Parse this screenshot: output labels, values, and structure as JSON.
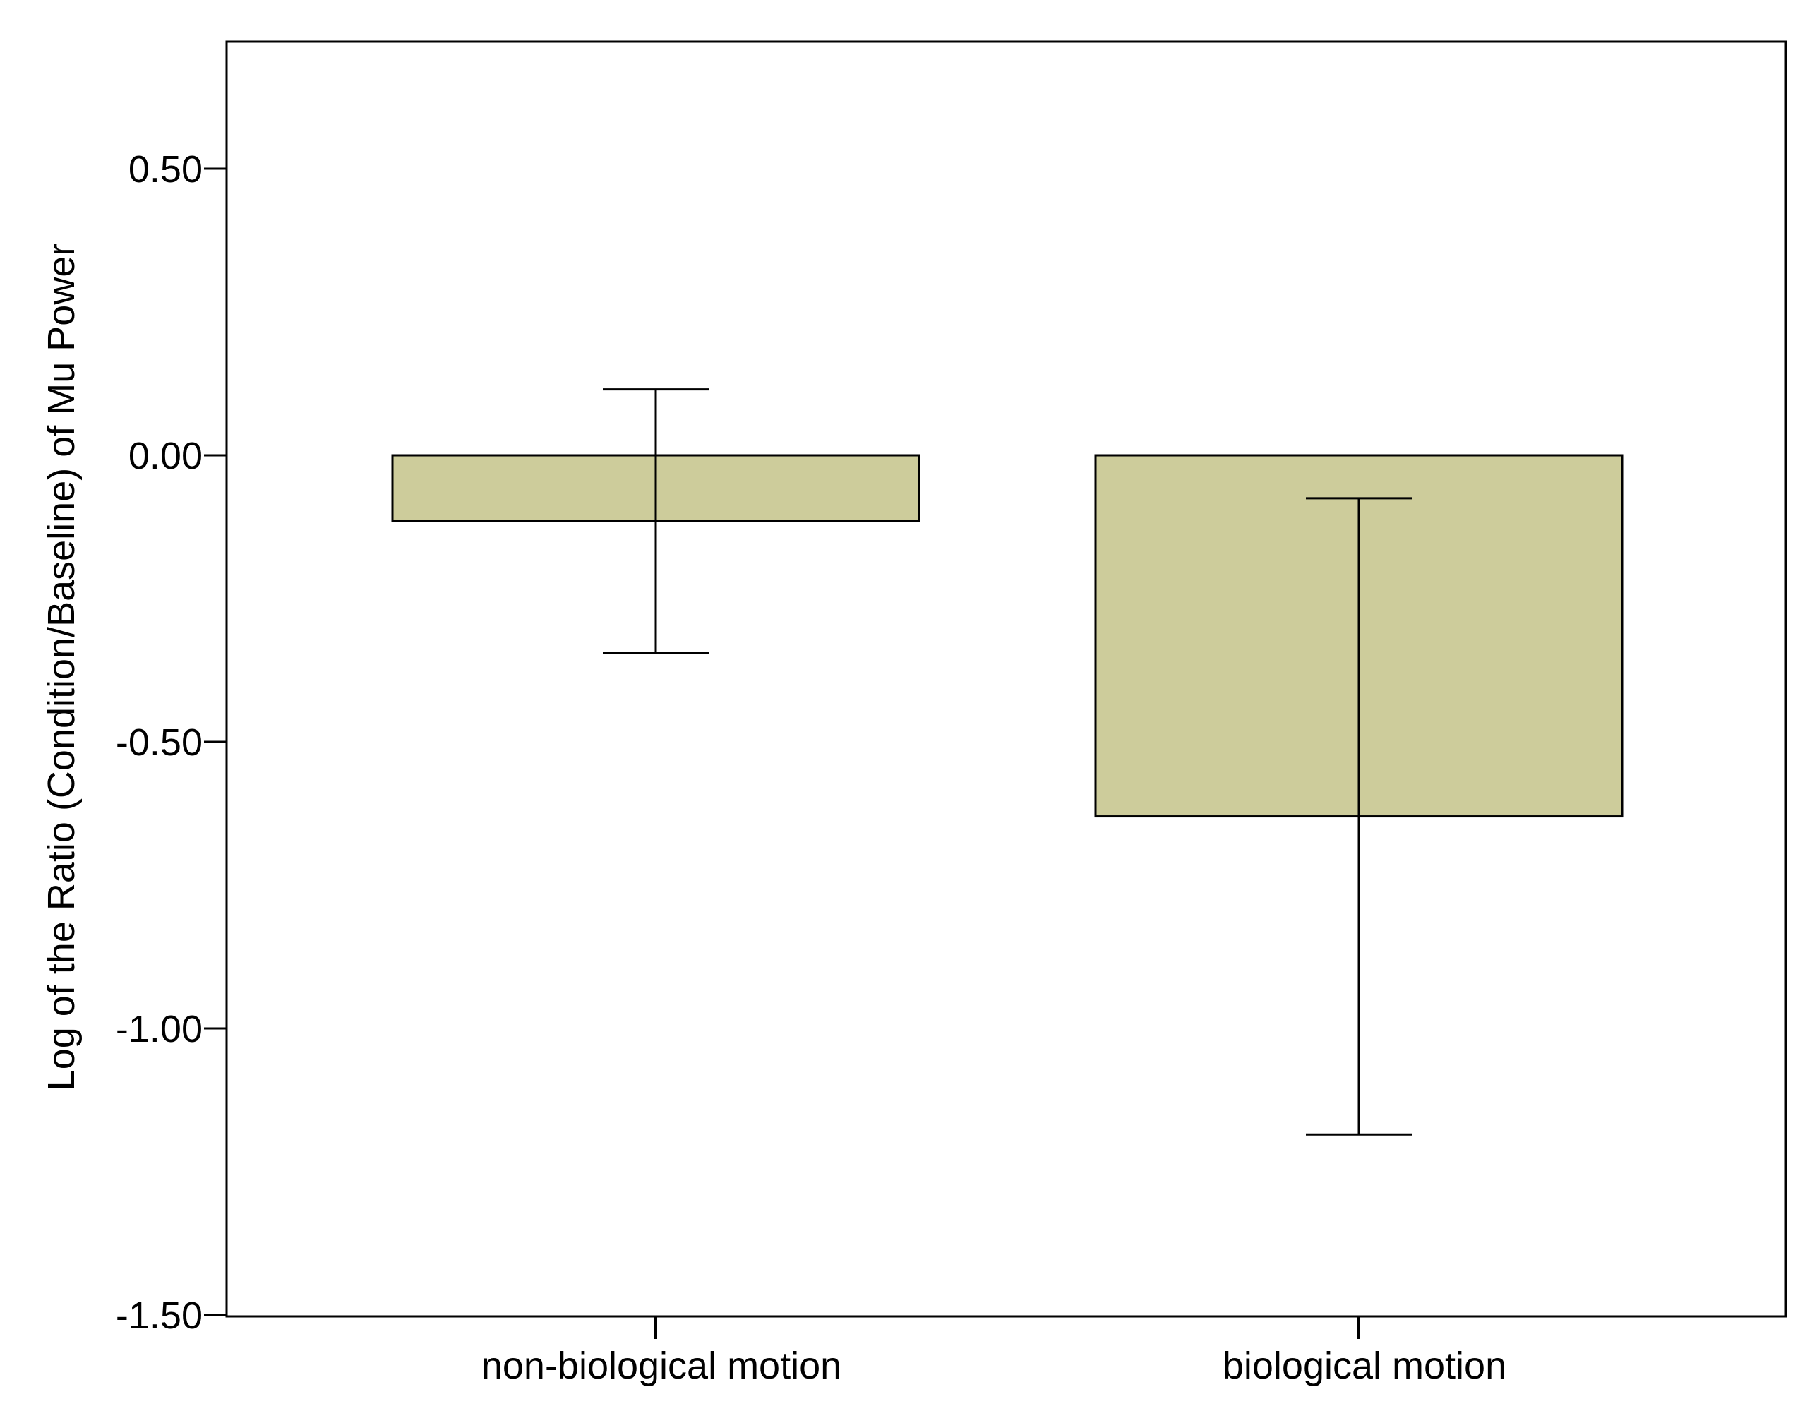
{
  "chart_data": {
    "type": "bar",
    "categories": [
      "non-biological motion",
      "biological motion"
    ],
    "values": [
      -0.115,
      -0.63
    ],
    "error_bars": {
      "lower": [
        -0.345,
        -1.185
      ],
      "upper": [
        0.115,
        -0.075
      ]
    },
    "title": "",
    "xlabel": "",
    "ylabel": "Log of the Ratio (Condition/Baseline) of Mu Power",
    "ylim": [
      -1.5,
      0.72
    ],
    "yticks": [
      0.5,
      0.0,
      -0.5,
      -1.0,
      -1.5
    ],
    "ytick_labels": [
      "0.50",
      "0.00",
      "-0.50",
      "-1.00",
      "-1.50"
    ],
    "grid": false,
    "legend": "none",
    "bar_color": "#cdcc9b",
    "line_color": "#000000"
  }
}
